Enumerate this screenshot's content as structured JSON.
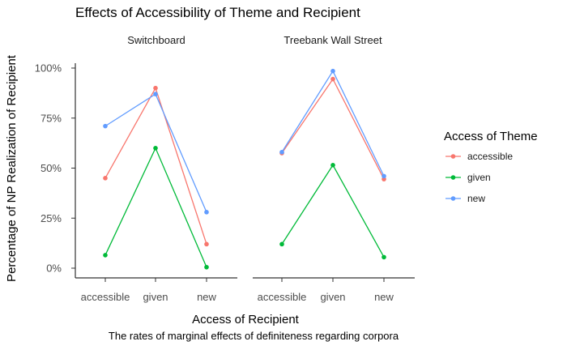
{
  "chart_data": {
    "type": "line",
    "title": "Effects of Accessibility of Theme and Recipient",
    "xlabel": "Access of Recipient",
    "ylabel": "Percentage of NP Realization of Recipient",
    "caption": "The rates of marginal effects of definiteness regarding corpora",
    "categories": [
      "accessible",
      "given",
      "new"
    ],
    "y_ticks": [
      "0%",
      "25%",
      "50%",
      "75%",
      "100%"
    ],
    "ylim": [
      0,
      1.0
    ],
    "legend": {
      "title": "Access of Theme",
      "placement": "right"
    },
    "series_colors": {
      "accessible": "#F8766D",
      "given": "#00BA38",
      "new": "#619CFF"
    },
    "panels": [
      {
        "name": "Switchboard",
        "series": [
          {
            "name": "accessible",
            "values": [
              0.45,
              0.9,
              0.12
            ]
          },
          {
            "name": "given",
            "values": [
              0.065,
              0.6,
              0.005
            ]
          },
          {
            "name": "new",
            "values": [
              0.71,
              0.87,
              0.28
            ]
          }
        ]
      },
      {
        "name": "Treebank Wall Street",
        "series": [
          {
            "name": "accessible",
            "values": [
              0.575,
              0.945,
              0.445
            ]
          },
          {
            "name": "given",
            "values": [
              0.12,
              0.515,
              0.055
            ]
          },
          {
            "name": "new",
            "values": [
              0.58,
              0.985,
              0.46
            ]
          }
        ]
      }
    ]
  }
}
